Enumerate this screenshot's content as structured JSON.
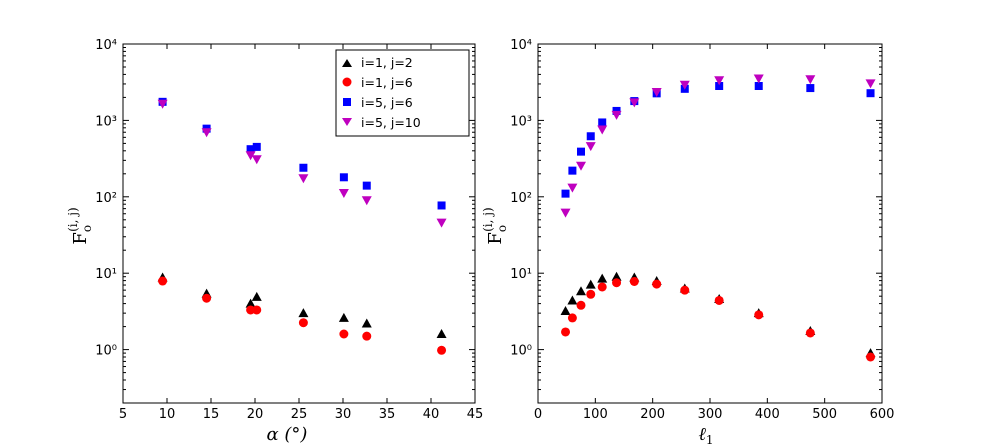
{
  "chart_data": [
    {
      "type": "scatter",
      "xlabel": "α (°)",
      "ylabel": "F",
      "ylabel_sup": "(i, j)",
      "ylabel_sub": "o",
      "xlim": [
        5,
        45
      ],
      "ylim": [
        0.2,
        10000
      ],
      "yscale": "log",
      "xticks": [
        5,
        10,
        15,
        20,
        25,
        30,
        35,
        40,
        45
      ],
      "yticks": [
        1,
        10,
        100,
        1000,
        10000
      ],
      "legend": {
        "location": "top-right"
      },
      "series": [
        {
          "name": "i=1, j=2",
          "marker": "triangle-up",
          "color": "#000000",
          "x": [
            9.5,
            14.5,
            19.5,
            20.2,
            25.5,
            30.1,
            32.7,
            41.2
          ],
          "y": [
            8.8,
            5.4,
            4.0,
            4.9,
            3.0,
            2.6,
            2.2,
            1.6
          ]
        },
        {
          "name": "i=1, j=6",
          "marker": "circle",
          "color": "#ff0000",
          "x": [
            9.5,
            14.5,
            19.5,
            20.2,
            25.5,
            30.1,
            32.7,
            41.2
          ],
          "y": [
            7.9,
            4.7,
            3.3,
            3.3,
            2.25,
            1.6,
            1.5,
            0.98
          ]
        },
        {
          "name": "i=5, j=6",
          "marker": "square",
          "color": "#0000ff",
          "x": [
            9.5,
            14.5,
            19.5,
            20.2,
            25.5,
            30.1,
            32.7,
            41.2
          ],
          "y": [
            1750,
            780,
            420,
            450,
            240,
            180,
            140,
            77
          ]
        },
        {
          "name": "i=5, j=10",
          "marker": "triangle-down",
          "color": "#bf00bf",
          "x": [
            9.5,
            14.5,
            19.5,
            20.2,
            25.5,
            30.1,
            32.7,
            41.2
          ],
          "y": [
            1650,
            700,
            350,
            310,
            175,
            112,
            90,
            46
          ]
        }
      ]
    },
    {
      "type": "scatter",
      "xlabel": "ℓ",
      "xlabel_sub": "1",
      "ylabel": "F",
      "ylabel_sup": "(i, j)",
      "ylabel_sub": "o",
      "xlim": [
        0,
        600
      ],
      "ylim": [
        0.2,
        10000
      ],
      "yscale": "log",
      "xticks": [
        0,
        100,
        200,
        300,
        400,
        500,
        600
      ],
      "yticks": [
        1,
        10,
        100,
        1000,
        10000
      ],
      "series": [
        {
          "name": "i=1, j=2",
          "marker": "triangle-up",
          "color": "#000000",
          "x": [
            48,
            60,
            75,
            92,
            112,
            137,
            168,
            207,
            256,
            316,
            385,
            475,
            580
          ],
          "y": [
            3.2,
            4.4,
            5.8,
            7.1,
            8.5,
            9.0,
            8.8,
            7.9,
            6.3,
            4.6,
            3.0,
            1.75,
            0.9
          ]
        },
        {
          "name": "i=1, j=6",
          "marker": "circle",
          "color": "#ff0000",
          "x": [
            48,
            60,
            75,
            92,
            112,
            137,
            168,
            207,
            256,
            316,
            385,
            475,
            580
          ],
          "y": [
            1.7,
            2.6,
            3.8,
            5.3,
            6.6,
            7.5,
            7.8,
            7.2,
            6.0,
            4.4,
            2.85,
            1.65,
            0.8
          ]
        },
        {
          "name": "i=5, j=6",
          "marker": "square",
          "color": "#0000ff",
          "x": [
            48,
            60,
            75,
            92,
            112,
            137,
            168,
            207,
            256,
            316,
            385,
            475,
            580
          ],
          "y": [
            110,
            220,
            390,
            620,
            940,
            1330,
            1790,
            2260,
            2590,
            2820,
            2820,
            2650,
            2270
          ]
        },
        {
          "name": "i=5, j=10",
          "marker": "triangle-down",
          "color": "#bf00bf",
          "x": [
            48,
            60,
            75,
            92,
            112,
            137,
            168,
            207,
            256,
            316,
            385,
            475,
            580
          ],
          "y": [
            62,
            132,
            255,
            460,
            760,
            1180,
            1720,
            2350,
            2930,
            3350,
            3530,
            3450,
            3050
          ]
        }
      ]
    }
  ]
}
